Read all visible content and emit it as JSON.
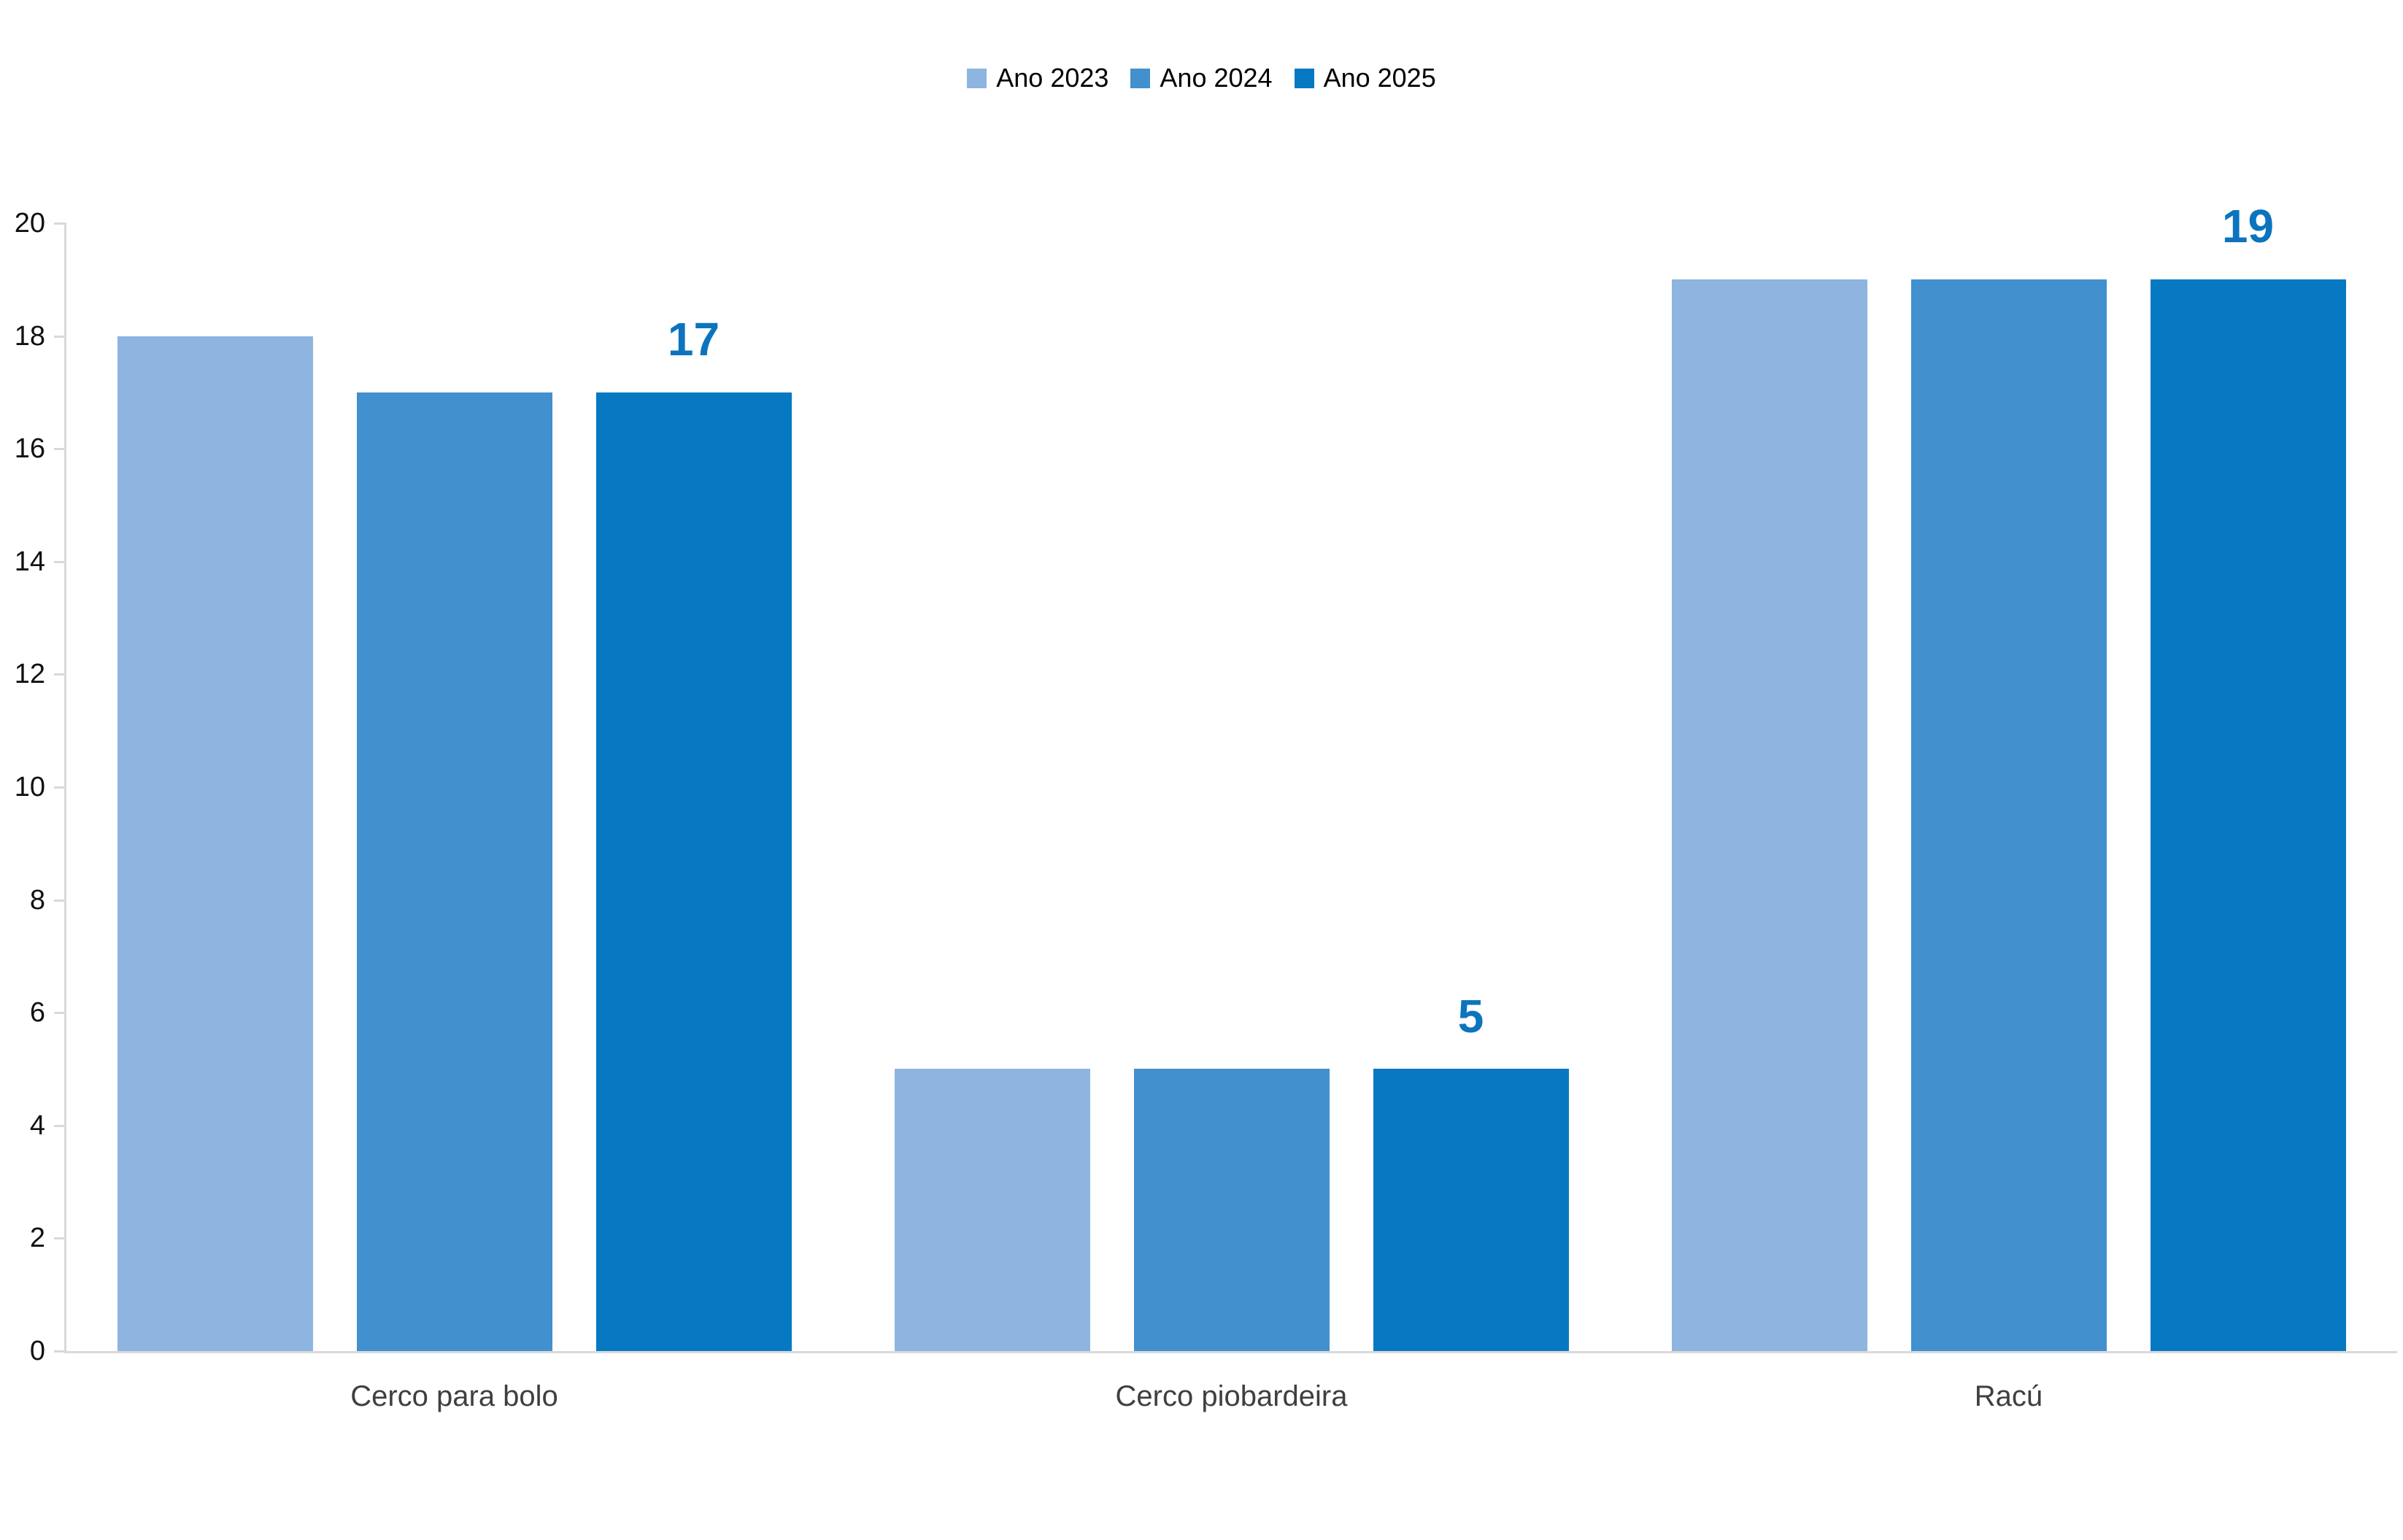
{
  "chart_data": {
    "type": "bar",
    "title": "",
    "categories": [
      "Cerco para bolo",
      "Cerco piobardeira",
      "Racú"
    ],
    "series": [
      {
        "name": "Ano 2023",
        "color": "#8DB5DF",
        "values": [
          18,
          5,
          19
        ],
        "show_value_labels": false
      },
      {
        "name": "Ano 2024",
        "color": "#4290CE",
        "values": [
          17,
          5,
          19
        ],
        "show_value_labels": false
      },
      {
        "name": "Ano 2025",
        "color": "#0679C2",
        "values": [
          17,
          5,
          19
        ],
        "show_value_labels": true
      }
    ],
    "value_labels": {
      "series": "Ano 2025",
      "values": [
        17,
        5,
        19
      ],
      "color": "#0C74BE"
    },
    "ylim": [
      0,
      20
    ],
    "yticks": [
      0,
      2,
      4,
      6,
      8,
      10,
      12,
      14,
      16,
      18,
      20
    ],
    "xlabel": "",
    "ylabel": "",
    "legend_position": "top",
    "grid": false,
    "axis_color": "#D9D9D9",
    "tick_label_color": "#111111",
    "category_label_color": "#3F3F3F",
    "background": "#FFFFFF"
  }
}
